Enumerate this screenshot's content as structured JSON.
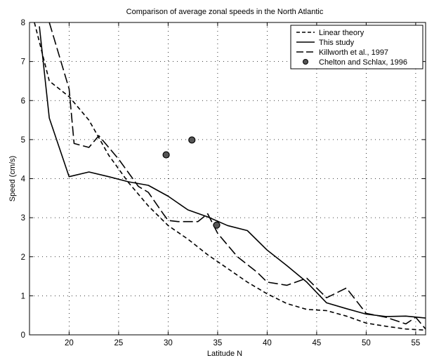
{
  "chart_data": {
    "type": "line",
    "title": "Comparison of average zonal speeds in the North Atlantic",
    "xlabel": "Latitude N",
    "ylabel": "Speed (cm/s)",
    "xlim": [
      16,
      56
    ],
    "ylim": [
      0,
      8
    ],
    "x_ticks": [
      20,
      25,
      30,
      35,
      40,
      45,
      50,
      55
    ],
    "y_ticks": [
      0,
      1,
      2,
      3,
      4,
      5,
      6,
      7,
      8
    ],
    "grid": true,
    "legend_position": "top-right",
    "series": [
      {
        "name": "Linear theory",
        "style": "dashed",
        "color": "#000000",
        "x": [
          16.5,
          18,
          20,
          22,
          24,
          26,
          28,
          30,
          32,
          34,
          36,
          38,
          40,
          42,
          44,
          46,
          48,
          50,
          52,
          54,
          56
        ],
        "y": [
          8.0,
          6.5,
          6.1,
          5.5,
          4.6,
          3.9,
          3.3,
          2.8,
          2.45,
          2.05,
          1.7,
          1.35,
          1.05,
          0.8,
          0.65,
          0.62,
          0.48,
          0.3,
          0.22,
          0.15,
          0.12
        ]
      },
      {
        "name": "This study",
        "style": "solid",
        "color": "#000000",
        "x": [
          17,
          18,
          20,
          22,
          24,
          26,
          28,
          30,
          32,
          34,
          36,
          38,
          40,
          42,
          44,
          46,
          48,
          50,
          52,
          54,
          56
        ],
        "y": [
          7.9,
          5.55,
          4.05,
          4.17,
          4.05,
          3.92,
          3.83,
          3.55,
          3.2,
          3.02,
          2.8,
          2.67,
          2.17,
          1.77,
          1.35,
          0.82,
          0.67,
          0.53,
          0.47,
          0.48,
          0.43
        ]
      },
      {
        "name": "Killworth et al., 1997",
        "style": "long-dash",
        "color": "#000000",
        "x": [
          18,
          20,
          20.5,
          22,
          23,
          25,
          27,
          28,
          29.5,
          30,
          31,
          33,
          34,
          35,
          37,
          39,
          40,
          42,
          44,
          45,
          46,
          48,
          50,
          52,
          54,
          55,
          56
        ],
        "y": [
          8.0,
          6.3,
          4.9,
          4.8,
          5.1,
          4.5,
          3.8,
          3.65,
          3.1,
          2.93,
          2.9,
          2.9,
          3.1,
          2.6,
          2.0,
          1.6,
          1.35,
          1.27,
          1.45,
          1.2,
          0.95,
          1.2,
          0.55,
          0.45,
          0.28,
          0.45,
          0.15
        ]
      },
      {
        "name": "Chelton and Schlax, 1996",
        "style": "markers",
        "color": "#555555",
        "x": [
          29.8,
          32.4,
          34.9
        ],
        "y": [
          4.61,
          4.99,
          2.81
        ]
      }
    ]
  }
}
